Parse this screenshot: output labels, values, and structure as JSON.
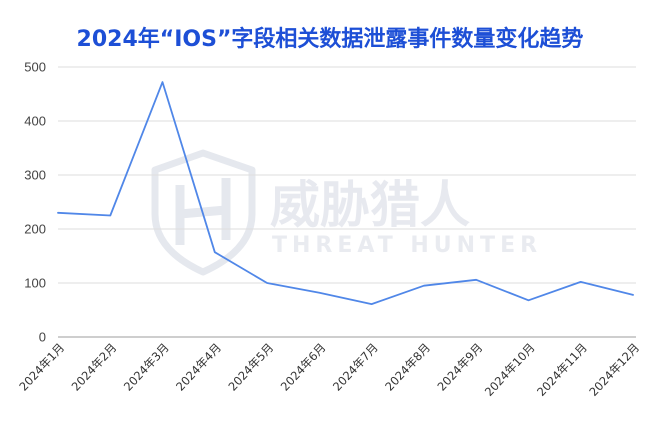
{
  "chart_data": {
    "type": "line",
    "title": "2024年“IOS”字段相关数据泄露事件数量变化趋势",
    "categories": [
      "2024年1月",
      "2024年2月",
      "2024年3月",
      "2024年4月",
      "2024年5月",
      "2024年6月",
      "2024年7月",
      "2024年8月",
      "2024年9月",
      "2024年10月",
      "2024年11月",
      "2024年12月"
    ],
    "values": [
      230,
      225,
      472,
      157,
      100,
      82,
      61,
      95,
      106,
      68,
      102,
      78
    ],
    "ylim": [
      0,
      500
    ],
    "yticks": [
      0,
      100,
      200,
      300,
      400,
      500
    ],
    "grid": true,
    "legend": "none"
  },
  "watermark": {
    "name_cn": "威胁猎人",
    "name_en": "THREAT HUNTER",
    "icon": "shield-h-icon"
  },
  "colors": {
    "title": "#1d4fd6",
    "line": "#5087e8",
    "grid": "#dedede",
    "baseline": "#9e9e9e",
    "watermark": "#e7e9ef"
  }
}
